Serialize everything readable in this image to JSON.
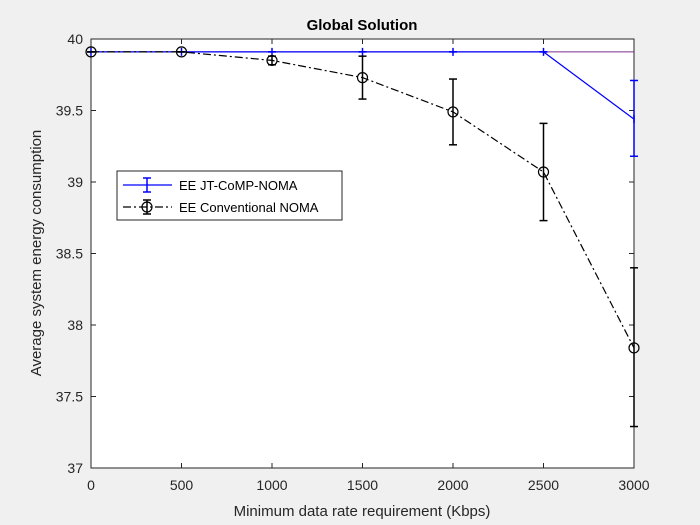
{
  "chart_data": {
    "type": "line",
    "title": "Global Solution",
    "xlabel": "Minimum data rate requirement (Kbps)",
    "ylabel": "Average system energy consumption",
    "xlim": [
      0,
      3000
    ],
    "ylim": [
      37,
      40
    ],
    "x_ticks": [
      "0",
      "500",
      "1000",
      "1500",
      "2000",
      "2500",
      "3000"
    ],
    "y_ticks": [
      "37",
      "37.5",
      "38",
      "38.5",
      "39",
      "39.5",
      "40"
    ],
    "x": [
      0,
      500,
      1000,
      1500,
      2000,
      2500,
      3000
    ],
    "grid": false,
    "legend_position": "left",
    "series": [
      {
        "name": "EE JT-CoMP-NOMA",
        "color": "#0000ff",
        "line_style": "solid",
        "marker": "none",
        "values": [
          39.91,
          39.91,
          39.91,
          39.91,
          39.91,
          39.91,
          39.44
        ],
        "error_low": [
          39.91,
          39.91,
          39.91,
          39.91,
          39.91,
          39.91,
          39.18
        ],
        "error_high": [
          39.91,
          39.91,
          39.91,
          39.91,
          39.91,
          39.91,
          39.71
        ]
      },
      {
        "name": "EE Conventional NOMA",
        "color": "#000000",
        "line_style": "dashdot",
        "marker": "circle",
        "values": [
          39.91,
          39.91,
          39.85,
          39.73,
          39.49,
          39.07,
          37.84
        ],
        "error_low": [
          39.91,
          39.91,
          39.82,
          39.58,
          39.26,
          38.73,
          37.29
        ],
        "error_high": [
          39.91,
          39.91,
          39.88,
          39.88,
          39.72,
          39.41,
          38.4
        ]
      }
    ],
    "reference_line": {
      "value": 39.91,
      "color": "#7e2f8e"
    }
  }
}
